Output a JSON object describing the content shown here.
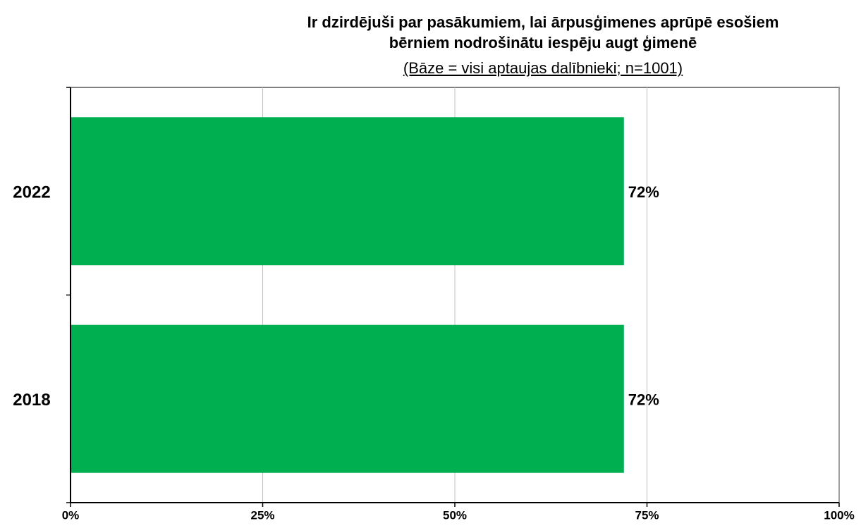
{
  "chart_data": {
    "type": "barh",
    "title": [
      "Ir dzirdējuši par pasākumiem, lai ārpusģimenes aprūpē esošiem",
      "bērniem nodrošinātu iespēju augt ģimenē"
    ],
    "subtitle": "(Bāze = visi aptaujas dalībnieki; n=1001)",
    "categories": [
      "2022",
      "2018"
    ],
    "values": [
      72,
      72
    ],
    "value_labels": [
      "72%",
      "72%"
    ],
    "color": "#00b050",
    "xlim": [
      0,
      100
    ],
    "xticks": [
      {
        "value": 0,
        "label": "0%"
      },
      {
        "value": 25,
        "label": "25%"
      },
      {
        "value": 50,
        "label": "50%"
      },
      {
        "value": 75,
        "label": "75%"
      },
      {
        "value": 100,
        "label": "100%"
      }
    ],
    "grid": true
  }
}
